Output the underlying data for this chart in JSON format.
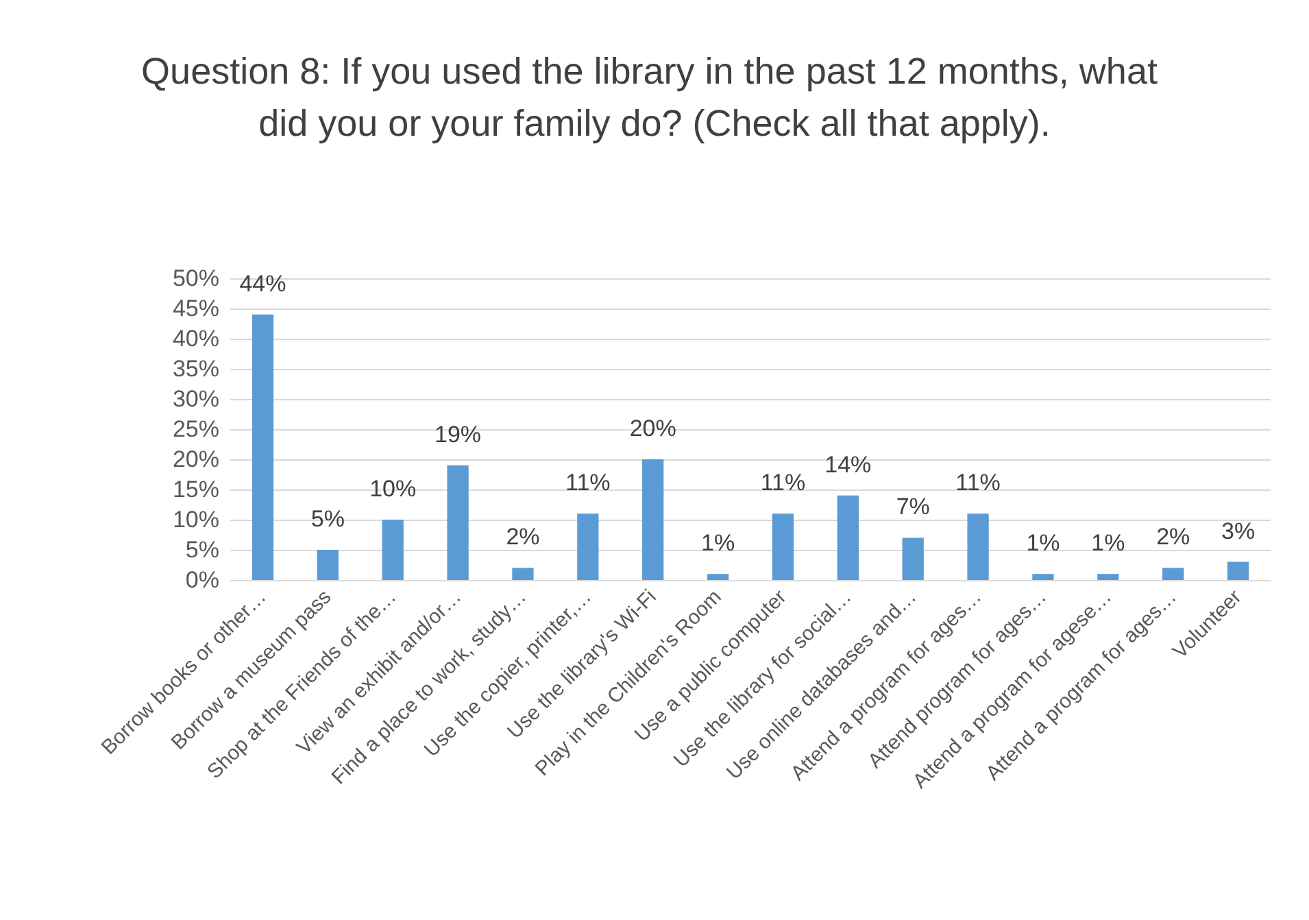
{
  "chart_data": {
    "type": "bar",
    "title": "Question 8: If you used the library in the past 12 months, what did you or your family do? (Check all that apply).",
    "categories": [
      "Borrow books or other…",
      "Borrow a museum pass",
      "Shop at the Friends of the…",
      "View an exhibit and/or…",
      "Find a place to work, study…",
      "Use the copier, printer,…",
      "Use the library's Wi-Fi",
      "Play in the Children's Room",
      "Use a public computer",
      "Use the library for social…",
      "Use online databases and…",
      "Attend a program for ages…",
      "Attend program for ages…",
      "Attend a program for agese…",
      "Attend a program for ages…",
      "Volunteer"
    ],
    "values": [
      44,
      5,
      10,
      19,
      2,
      11,
      20,
      1,
      11,
      14,
      7,
      11,
      1,
      1,
      2,
      3
    ],
    "value_labels": [
      "44%",
      "5%",
      "10%",
      "19%",
      "2%",
      "11%",
      "20%",
      "1%",
      "11%",
      "14%",
      "7%",
      "11%",
      "1%",
      "1%",
      "2%",
      "3%"
    ],
    "color": "#5b9bd5",
    "ylim": [
      0,
      50
    ],
    "yticks": [
      {
        "value": 0,
        "label": "0%"
      },
      {
        "value": 5,
        "label": "5%"
      },
      {
        "value": 10,
        "label": "10%"
      },
      {
        "value": 15,
        "label": "15%"
      },
      {
        "value": 20,
        "label": "20%"
      },
      {
        "value": 25,
        "label": "25%"
      },
      {
        "value": 30,
        "label": "30%"
      },
      {
        "value": 35,
        "label": "35%"
      },
      {
        "value": 40,
        "label": "40%"
      },
      {
        "value": 45,
        "label": "45%"
      },
      {
        "value": 50,
        "label": "50%"
      }
    ],
    "grid": "y"
  }
}
